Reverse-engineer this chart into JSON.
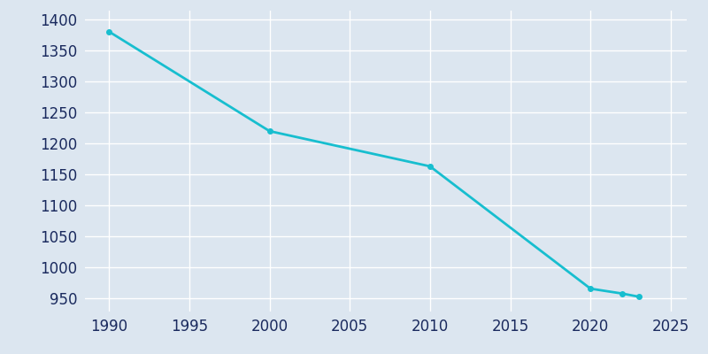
{
  "years": [
    1990,
    2000,
    2010,
    2020,
    2022,
    2023
  ],
  "population": [
    1381,
    1220,
    1163,
    965,
    957,
    952
  ],
  "line_color": "#17BECF",
  "marker": "o",
  "marker_size": 4,
  "linewidth": 2,
  "bg_color": "#DCE6F0",
  "plot_bg_color": "#DCE6F0",
  "grid_color": "#ffffff",
  "xlim": [
    1988.5,
    2026
  ],
  "ylim": [
    928,
    1415
  ],
  "xticks": [
    1990,
    1995,
    2000,
    2005,
    2010,
    2015,
    2020,
    2025
  ],
  "yticks": [
    950,
    1000,
    1050,
    1100,
    1150,
    1200,
    1250,
    1300,
    1350,
    1400
  ],
  "tick_label_color": "#1a2a5e",
  "tick_fontsize": 12
}
